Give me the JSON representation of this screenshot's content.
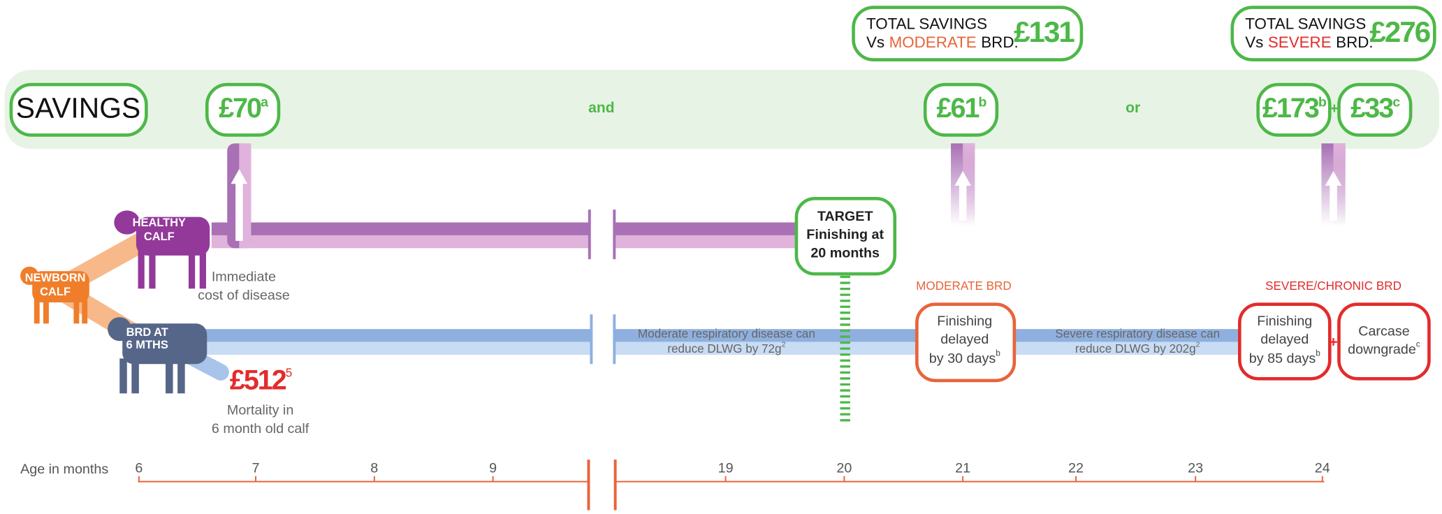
{
  "savings_band": {
    "label": "SAVINGS",
    "connector_and": "and",
    "connector_or": "or",
    "plus": "+",
    "healthy_saving": {
      "amount": "£70",
      "note": "a"
    },
    "moderate_saving": {
      "amount": "£61",
      "note": "b"
    },
    "severe_delay_saving": {
      "amount": "£173",
      "note": "b"
    },
    "severe_carcase_saving": {
      "amount": "£33",
      "note": "c"
    }
  },
  "total_moderate": {
    "line1": "TOTAL SAVINGS",
    "vs": "Vs",
    "qualifier": "MODERATE",
    "suffix": "BRD:",
    "amount": "£131"
  },
  "total_severe": {
    "line1": "TOTAL SAVINGS",
    "vs": "Vs",
    "qualifier": "SEVERE",
    "suffix": "BRD:",
    "amount": "£276"
  },
  "calves": {
    "healthy": [
      "HEALTHY",
      "CALF"
    ],
    "newborn": [
      "NEWBORN",
      "CALF"
    ],
    "brd": [
      "BRD AT",
      "6 MTHS"
    ]
  },
  "immediate_cost": [
    "Immediate",
    "cost of disease"
  ],
  "mortality": {
    "amount": "£512",
    "note": "5",
    "caption": [
      "Mortality in",
      "6 month old calf"
    ]
  },
  "target": [
    "TARGET",
    "Finishing at",
    "20 months"
  ],
  "moderate": {
    "heading": "MODERATE BRD",
    "box": [
      "Finishing",
      "delayed",
      "by 30 days"
    ],
    "box_note": "b",
    "description": [
      "Moderate respiratory disease can",
      "reduce DLWG by 72g"
    ],
    "description_note": "2"
  },
  "severe": {
    "heading": "SEVERE/CHRONIC BRD",
    "box": [
      "Finishing",
      "delayed",
      "by 85 days"
    ],
    "box_note": "b",
    "plus": "+",
    "carcase": [
      "Carcase",
      "downgrade"
    ],
    "carcase_note": "c",
    "description": [
      "Severe respiratory disease can",
      "reduce DLWG by 202g"
    ],
    "description_note": "2"
  },
  "axis": {
    "label": "Age in months",
    "ages": [
      "6",
      "7",
      "8",
      "9",
      "19",
      "20",
      "21",
      "22",
      "23",
      "24"
    ]
  }
}
